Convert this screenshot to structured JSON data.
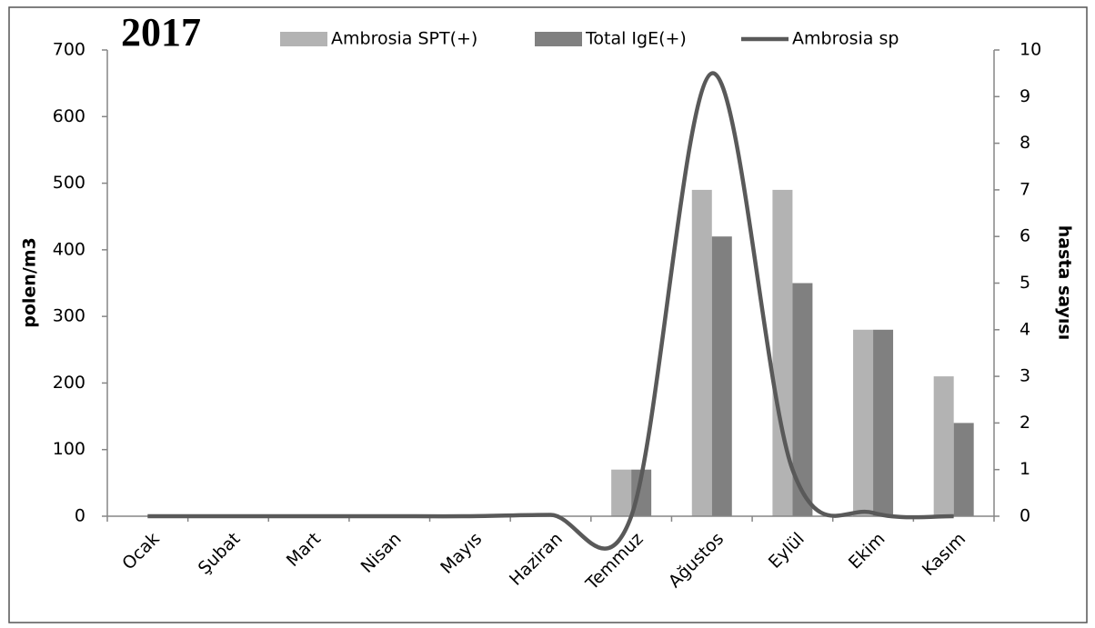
{
  "chart_data": {
    "type": "bar-line",
    "title": "2017",
    "categories": [
      "Ocak",
      "Şubat",
      "Mart",
      "Nisan",
      "Mayıs",
      "Haziran",
      "Temmuz",
      "Ağustos",
      "Eylül",
      "Ekim",
      "Kasım"
    ],
    "y_label": "polen/m3",
    "y2_label": "hasta sayısı",
    "ylim": [
      0,
      700
    ],
    "yticks": [
      0,
      100,
      200,
      300,
      400,
      500,
      600,
      700
    ],
    "y2lim": [
      0,
      10
    ],
    "y2ticks": [
      0,
      1,
      2,
      3,
      4,
      5,
      6,
      7,
      8,
      9,
      10
    ],
    "series": [
      {
        "name": "Ambrosia SPT(+)",
        "type": "bar",
        "axis": "y2",
        "color": "#b3b3b3",
        "values": [
          0,
          0,
          0,
          0,
          0,
          0,
          1,
          7,
          7,
          4,
          3
        ]
      },
      {
        "name": "Total IgE(+)",
        "type": "bar",
        "axis": "y2",
        "color": "#808080",
        "values": [
          0,
          0,
          0,
          0,
          0,
          0,
          1,
          6,
          5,
          4,
          2
        ]
      },
      {
        "name": "Ambrosia sp",
        "type": "line",
        "color": "#595959",
        "values": [
          0,
          0,
          0,
          0,
          0,
          2,
          0,
          665,
          70,
          5,
          0
        ]
      }
    ],
    "legend": "top"
  }
}
